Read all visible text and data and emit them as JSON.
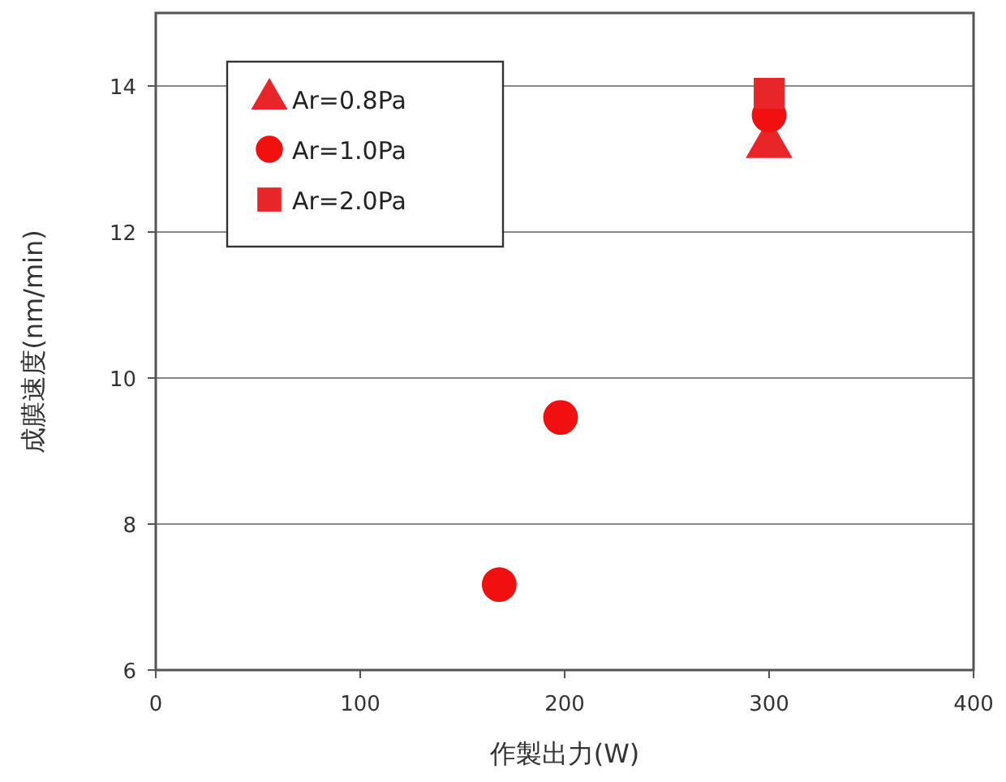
{
  "chart_data": {
    "type": "scatter",
    "xlabel": "作製出力(W)",
    "ylabel": "成膜速度(nm/min)",
    "xlim": [
      0,
      400
    ],
    "xticks": [
      0,
      100,
      200,
      300,
      400
    ],
    "ylim": [
      6,
      15
    ],
    "yticks": [
      6,
      8,
      10,
      12,
      14
    ],
    "grid": "y",
    "legend": "top left",
    "series": [
      {
        "name": "Ar=0.8Pa",
        "color": "#e8262a",
        "marker": "triangle",
        "x": [
          300
        ],
        "values": [
          13.2
        ]
      },
      {
        "name": "Ar=1.0Pa",
        "color": "#f01010",
        "marker": "circle",
        "x": [
          168,
          198,
          300
        ],
        "values": [
          7.17,
          9.46,
          13.6
        ]
      },
      {
        "name": "Ar=2.0Pa",
        "color": "#e8262a",
        "marker": "square",
        "x": [
          300
        ],
        "values": [
          13.9
        ]
      }
    ]
  }
}
